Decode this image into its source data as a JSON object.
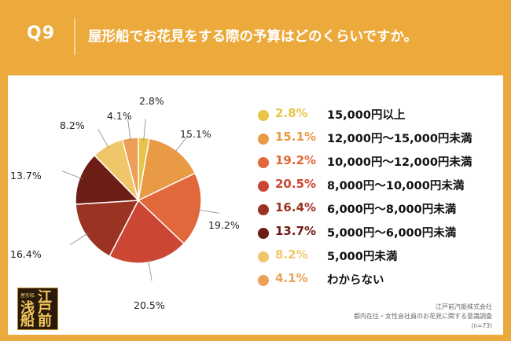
{
  "header": {
    "question_no": "Q9",
    "title": "屋形船でお花見をする際の予算はどのくらいですか。"
  },
  "chart_data": {
    "type": "pie",
    "title": "屋形船でお花見をする際の予算はどのくらいですか。",
    "slices": [
      {
        "pct_label": "2.8%",
        "value": 2.8,
        "label": "15,000円以上",
        "color": "#e8c449"
      },
      {
        "pct_label": "15.1%",
        "value": 15.1,
        "label": "12,000円〜15,000円未満",
        "color": "#e89a44"
      },
      {
        "pct_label": "19.2%",
        "value": 19.2,
        "label": "10,000円〜12,000円未満",
        "color": "#e0683a"
      },
      {
        "pct_label": "20.5%",
        "value": 20.5,
        "label": "8,000円〜10,000円未満",
        "color": "#cc4733"
      },
      {
        "pct_label": "16.4%",
        "value": 16.4,
        "label": "6,000円〜8,000円未満",
        "color": "#9a3322"
      },
      {
        "pct_label": "13.7%",
        "value": 13.7,
        "label": "5,000円〜6,000円未満",
        "color": "#6c1d16"
      },
      {
        "pct_label": "8.2%",
        "value": 8.2,
        "label": "5,000円未満",
        "color": "#efc76a"
      },
      {
        "pct_label": "4.1%",
        "value": 4.1,
        "label": "わからない",
        "color": "#ec9f57"
      }
    ]
  },
  "footer": {
    "company": "江戸前汽船株式会社",
    "survey": "都内在住・女性会社員のお花見に関する意識調査",
    "sample": "(n=73)"
  },
  "logo": {
    "small_text": "屋形船",
    "chars": [
      "江",
      "戸",
      "浅",
      "前",
      "船"
    ]
  }
}
